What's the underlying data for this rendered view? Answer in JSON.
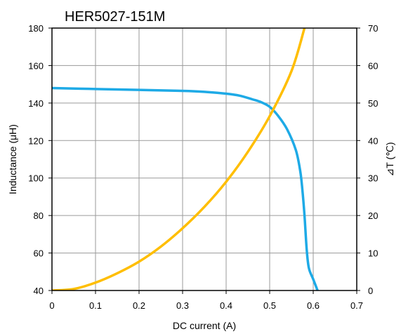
{
  "chart_data": {
    "type": "line",
    "title": "HER5027-151M",
    "xlabel": "DC current (A)",
    "ylabel": "Inductance (μH)",
    "y2label": "⊿T (℃)",
    "xlim": [
      0,
      0.7
    ],
    "ylim": [
      40,
      180
    ],
    "y2lim": [
      0,
      70
    ],
    "x_ticks": [
      "0",
      "0.1",
      "0.2",
      "0.3",
      "0.4",
      "0.5",
      "0.6",
      "0.7"
    ],
    "y_ticks": [
      "40",
      "60",
      "80",
      "100",
      "120",
      "140",
      "160",
      "180"
    ],
    "y2_ticks": [
      "0",
      "10",
      "20",
      "30",
      "40",
      "50",
      "60",
      "70"
    ],
    "grid": true,
    "series": [
      {
        "axis": "left",
        "color": "#1eaae6",
        "x": [
          0,
          0.1,
          0.2,
          0.3,
          0.35,
          0.4,
          0.43,
          0.46,
          0.48,
          0.5,
          0.52,
          0.54,
          0.56,
          0.57,
          0.575,
          0.58,
          0.585,
          0.59,
          0.6,
          0.61
        ],
        "y": [
          148,
          147.5,
          147,
          146.5,
          146,
          145,
          144,
          142,
          140.5,
          138,
          133,
          126,
          115,
          104,
          94,
          80,
          62,
          52,
          46,
          40
        ]
      },
      {
        "axis": "right",
        "color": "#ffbe00",
        "x": [
          0,
          0.05,
          0.1,
          0.15,
          0.2,
          0.25,
          0.3,
          0.35,
          0.4,
          0.45,
          0.5,
          0.55,
          0.58
        ],
        "y": [
          0,
          0.4,
          2.1,
          4.6,
          7.7,
          11.7,
          16.6,
          22.3,
          29,
          37,
          46.5,
          58.5,
          70
        ]
      }
    ]
  }
}
